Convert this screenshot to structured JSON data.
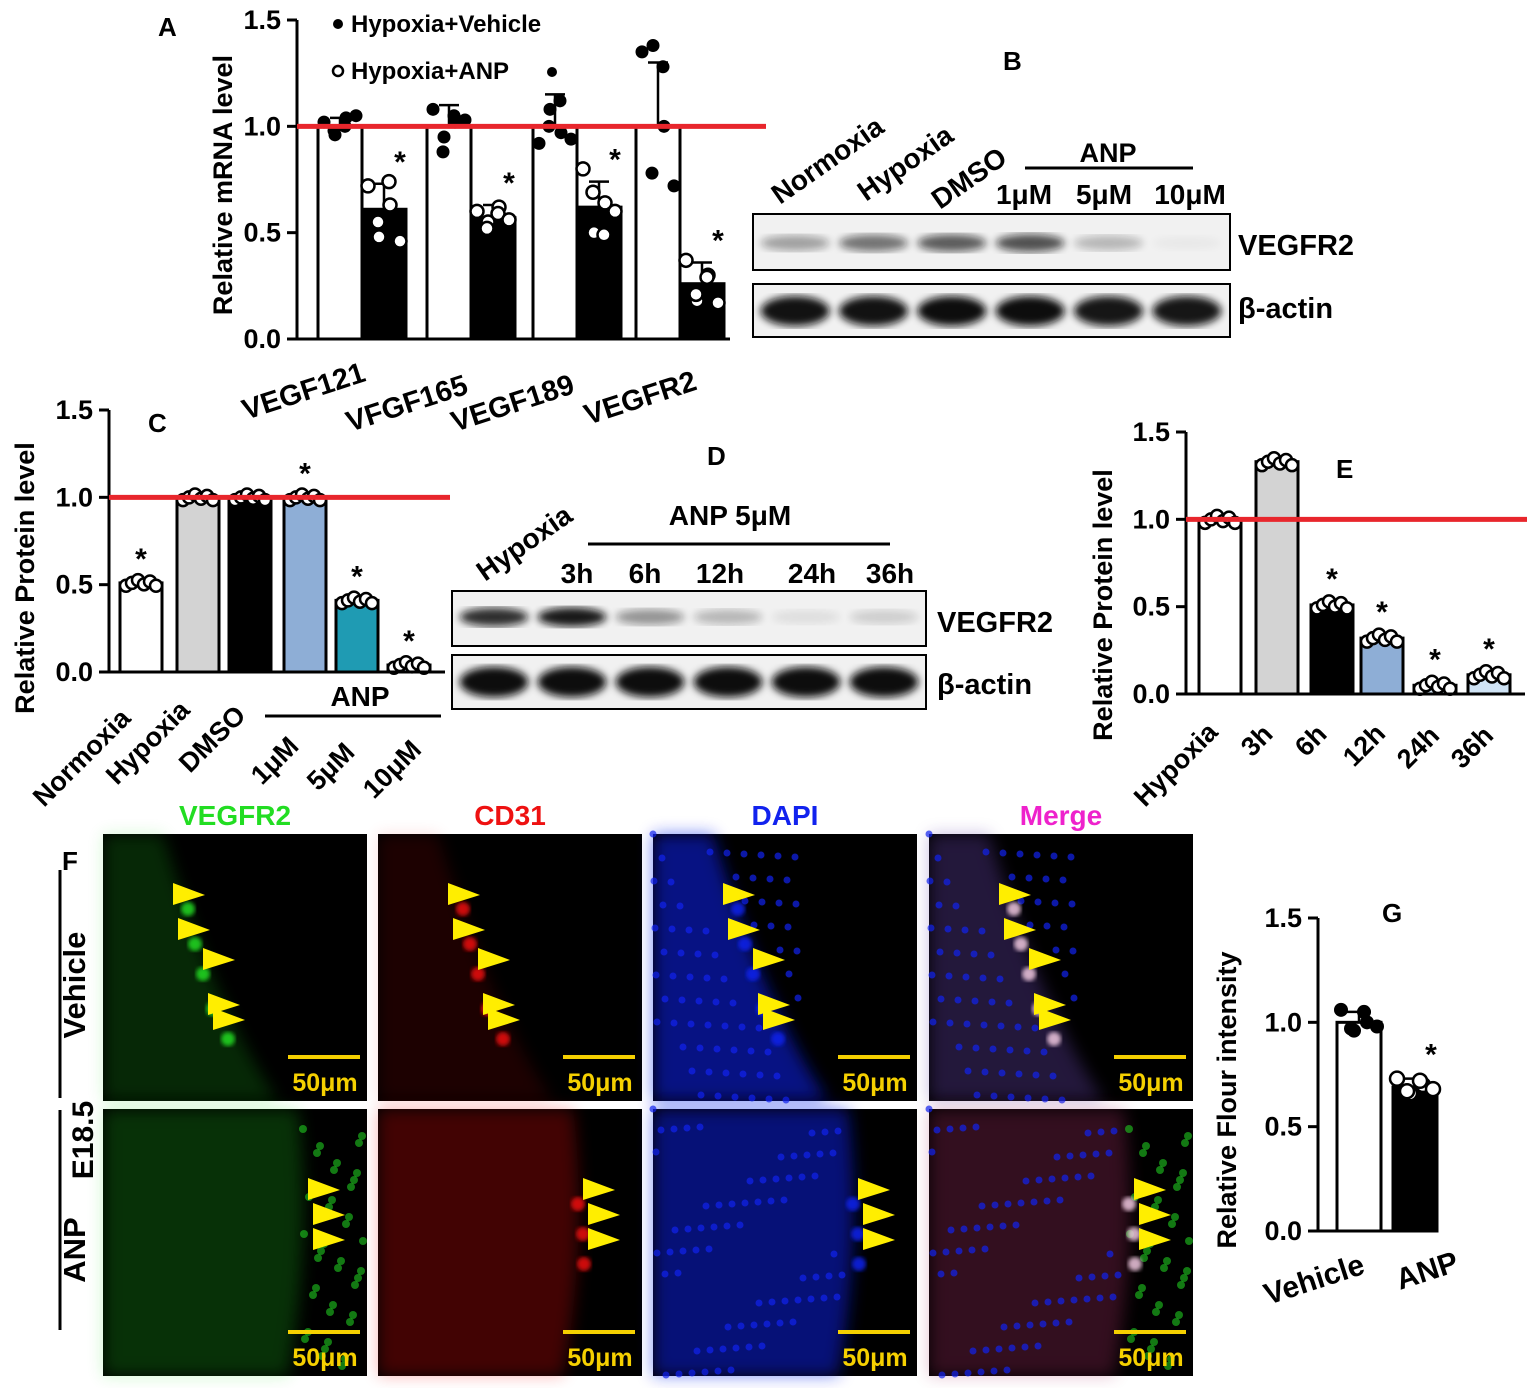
{
  "colors": {
    "reference_line": "#e8262c",
    "black": "#000000",
    "hypoxia_grey": "#d3d3d3",
    "anp_1uM": "#8eaed6",
    "anp_5uM": "#1f9bb3",
    "anp_10uM": "#cfe3f5",
    "vegfr2_green": "#22dd22",
    "cd31_red": "#ee1111",
    "dapi_blue": "#1122ee",
    "merge_magenta": "#ee22cc",
    "scale_yellow": "#f5d000",
    "arrow_yellow": "#ffee00"
  },
  "panel_letters": {
    "a": "A",
    "b": "B",
    "c": "C",
    "d": "D",
    "e": "E",
    "f": "F",
    "g": "G"
  },
  "chart_data": [
    {
      "panel": "A",
      "type": "bar",
      "ylabel": "Relative mRNA level",
      "ylim": [
        0,
        1.5
      ],
      "yticks": [
        "0.0",
        "0.5",
        "1.0",
        "1.5"
      ],
      "categories": [
        "VEGF121",
        "VFGF165",
        "VEGF189",
        "VEGFR2"
      ],
      "series": [
        {
          "name": "Hypoxia+Vehicle",
          "marker": "filled",
          "values": [
            1.0,
            1.0,
            1.0,
            1.0
          ],
          "error": [
            0.04,
            0.1,
            0.15,
            0.3
          ],
          "points": [
            [
              1.02,
              0.96,
              1.04,
              0.98,
              1.0,
              1.05
            ],
            [
              1.08,
              0.95,
              1.02,
              0.88,
              1.05,
              1.03
            ],
            [
              0.92,
              1.08,
              0.97,
              1.0,
              1.12,
              0.94
            ],
            [
              1.35,
              1.38,
              1.0,
              0.78,
              1.28,
              0.72
            ]
          ]
        },
        {
          "name": "Hypoxia+ANP",
          "marker": "open",
          "values": [
            0.61,
            0.57,
            0.62,
            0.26
          ],
          "error": [
            0.12,
            0.06,
            0.12,
            0.1
          ],
          "points": [
            [
              0.72,
              0.48,
              0.63,
              0.55,
              0.74,
              0.46
            ],
            [
              0.6,
              0.55,
              0.62,
              0.52,
              0.59,
              0.56
            ],
            [
              0.8,
              0.5,
              0.64,
              0.69,
              0.49,
              0.6
            ],
            [
              0.37,
              0.18,
              0.3,
              0.21,
              0.29,
              0.17
            ]
          ]
        }
      ],
      "significance": [
        "*",
        "*",
        "*",
        "*"
      ],
      "reference_line": 1.0,
      "legend": "top-left"
    },
    {
      "panel": "C",
      "type": "bar",
      "ylabel": "Relative Protein level",
      "ylim": [
        0,
        1.5
      ],
      "yticks": [
        "0.0",
        "0.5",
        "1.0",
        "1.5"
      ],
      "categories": [
        "Normoxia",
        "Hypoxia",
        "DMSO",
        "1μM",
        "5μM",
        "10μM"
      ],
      "values": [
        0.51,
        1.0,
        1.0,
        1.0,
        0.41,
        0.04
      ],
      "bar_colors": [
        "#ffffff",
        "#d3d3d3",
        "#000000",
        "#8eaed6",
        "#1f9bb3",
        "#cfe3f5"
      ],
      "significance": [
        "*",
        "",
        "",
        "*",
        "*",
        "*"
      ],
      "group_label": "ANP",
      "reference_line": 1.0
    },
    {
      "panel": "E",
      "type": "bar",
      "ylabel": "Relative Protein level",
      "ylim": [
        0,
        1.5
      ],
      "yticks": [
        "0.0",
        "0.5",
        "1.0",
        "1.5"
      ],
      "categories": [
        "Hypoxia",
        "3h",
        "6h",
        "12h",
        "24h",
        "36h"
      ],
      "values": [
        1.0,
        1.33,
        0.51,
        0.32,
        0.05,
        0.11
      ],
      "bar_colors": [
        "#ffffff",
        "#d3d3d3",
        "#000000",
        "#8eaed6",
        "#cfe3f5",
        "#cfe3f5"
      ],
      "significance": [
        "",
        "",
        "*",
        "*",
        "*",
        "*"
      ],
      "reference_line": 1.0
    },
    {
      "panel": "G",
      "type": "bar",
      "ylabel": "Relative Flour intensity",
      "ylim": [
        0,
        1.5
      ],
      "yticks": [
        "0.0",
        "0.5",
        "1.0",
        "1.5"
      ],
      "categories": [
        "Vehicle",
        "ANP"
      ],
      "values": [
        1.0,
        0.69
      ],
      "error": [
        0.05,
        0.04
      ],
      "bar_colors": [
        "#ffffff",
        "#000000"
      ],
      "points": [
        [
          1.06,
          0.96,
          1.0,
          0.97,
          1.05,
          0.98
        ],
        [
          0.73,
          0.66,
          0.7,
          0.67,
          0.72,
          0.68
        ]
      ],
      "significance": [
        "",
        "*"
      ]
    }
  ],
  "blot_B": {
    "lanes": [
      "Normoxia",
      "Hypoxia",
      "DMSO",
      "1μM",
      "5μM",
      "10μM"
    ],
    "group_label": "ANP",
    "rows": [
      {
        "label": "VEGFR2",
        "intensity": [
          0.35,
          0.55,
          0.65,
          0.7,
          0.25,
          0.03
        ]
      },
      {
        "label": "β-actin",
        "intensity": [
          0.95,
          0.95,
          1.0,
          1.0,
          0.9,
          0.9
        ]
      }
    ]
  },
  "blot_D": {
    "lanes": [
      "Hypoxia",
      "3h",
      "6h",
      "12h",
      "24h",
      "36h"
    ],
    "group_label": "ANP 5μM",
    "rows": [
      {
        "label": "VEGFR2",
        "intensity": [
          0.85,
          0.95,
          0.4,
          0.25,
          0.08,
          0.15
        ]
      },
      {
        "label": "β-actin",
        "intensity": [
          1.0,
          1.0,
          1.0,
          1.0,
          1.0,
          1.0
        ]
      }
    ]
  },
  "panel_F": {
    "channels": [
      "VEGFR2",
      "CD31",
      "DAPI",
      "Merge"
    ],
    "stage": "E18.5",
    "groups": [
      "Vehicle",
      "ANP"
    ],
    "scale_bar": "50μm"
  }
}
